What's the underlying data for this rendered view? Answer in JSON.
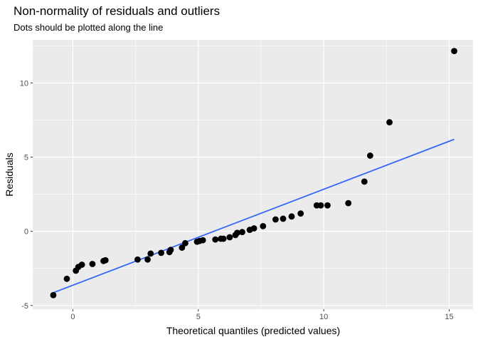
{
  "chart_data": {
    "type": "scatter",
    "title": "Non-normality of residuals and outliers",
    "subtitle": "Dots should be plotted along the line",
    "xlabel": "Theoretical quantiles (predicted values)",
    "ylabel": "Residuals",
    "xlim": [
      -1.6,
      15.95
    ],
    "ylim": [
      -5.25,
      12.9
    ],
    "x_ticks": [
      0,
      5,
      10,
      15
    ],
    "y_ticks": [
      -5,
      0,
      5,
      10
    ],
    "grid": true,
    "colors": {
      "panel": "#ebebeb",
      "grid": "#ffffff",
      "point": "#000000",
      "line": "#3366ff"
    },
    "reference_line": {
      "x": [
        -0.8,
        15.2
      ],
      "y": [
        -4.15,
        6.2
      ]
    },
    "points": [
      {
        "x": -0.78,
        "y": -4.3
      },
      {
        "x": -0.24,
        "y": -3.2
      },
      {
        "x": 0.12,
        "y": -2.65
      },
      {
        "x": 0.22,
        "y": -2.4
      },
      {
        "x": 0.36,
        "y": -2.25
      },
      {
        "x": 0.78,
        "y": -2.2
      },
      {
        "x": 1.22,
        "y": -2.0
      },
      {
        "x": 1.3,
        "y": -1.95
      },
      {
        "x": 2.58,
        "y": -1.9
      },
      {
        "x": 2.98,
        "y": -1.9
      },
      {
        "x": 3.1,
        "y": -1.5
      },
      {
        "x": 3.52,
        "y": -1.45
      },
      {
        "x": 3.85,
        "y": -1.4
      },
      {
        "x": 3.9,
        "y": -1.25
      },
      {
        "x": 4.35,
        "y": -1.1
      },
      {
        "x": 4.48,
        "y": -0.8
      },
      {
        "x": 4.95,
        "y": -0.7
      },
      {
        "x": 5.05,
        "y": -0.65
      },
      {
        "x": 5.18,
        "y": -0.6
      },
      {
        "x": 5.68,
        "y": -0.55
      },
      {
        "x": 5.9,
        "y": -0.5
      },
      {
        "x": 6.0,
        "y": -0.5
      },
      {
        "x": 6.25,
        "y": -0.4
      },
      {
        "x": 6.48,
        "y": -0.25
      },
      {
        "x": 6.55,
        "y": -0.1
      },
      {
        "x": 6.75,
        "y": -0.05
      },
      {
        "x": 7.05,
        "y": 0.1
      },
      {
        "x": 7.22,
        "y": 0.2
      },
      {
        "x": 7.58,
        "y": 0.35
      },
      {
        "x": 8.08,
        "y": 0.8
      },
      {
        "x": 8.38,
        "y": 0.85
      },
      {
        "x": 8.72,
        "y": 1.0
      },
      {
        "x": 9.08,
        "y": 1.2
      },
      {
        "x": 9.72,
        "y": 1.75
      },
      {
        "x": 9.88,
        "y": 1.75
      },
      {
        "x": 10.15,
        "y": 1.75
      },
      {
        "x": 10.98,
        "y": 1.9
      },
      {
        "x": 11.62,
        "y": 3.35
      },
      {
        "x": 11.85,
        "y": 5.1
      },
      {
        "x": 12.62,
        "y": 7.35
      },
      {
        "x": 15.2,
        "y": 12.15
      }
    ]
  }
}
